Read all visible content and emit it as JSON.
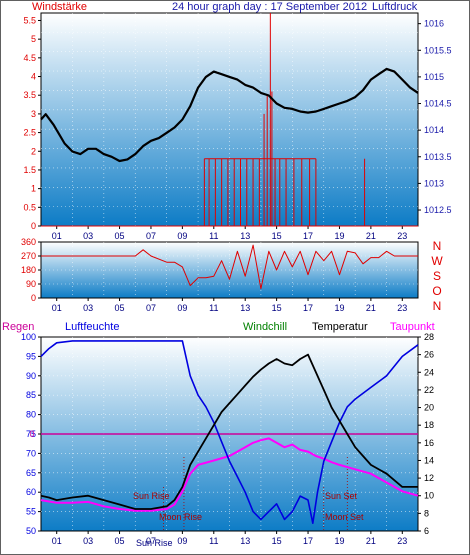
{
  "header": {
    "title": "24 hour graph day : 17 September 2012",
    "left_label": "Windstärke",
    "right_label": "Luftdruck"
  },
  "middle": {
    "compass_labels": [
      "N",
      "W",
      "S",
      "O",
      "N"
    ]
  },
  "bottom": {
    "labels": {
      "regen": "Regen",
      "luftfeuchte": "Luftfeuchte",
      "windchill": "Windchill",
      "temperatur": "Temperatur",
      "taupunkt": "Taupunkt"
    },
    "annotations": {
      "sun_rise": "Sun Rise",
      "moon_rise": "Moon Rise",
      "sun_set": "Sun Set",
      "moon_set": "Moon Set",
      "sun_rise_axis": "Sun Rise"
    }
  },
  "colors": {
    "border": "#606060",
    "bg_top": "#ffffff",
    "bg_bottom": "#0d7cc6",
    "wind": "#e00000",
    "pressure": "#000000",
    "humidity": "#0000e0",
    "temperature": "#000000",
    "dewpoint": "#ff00ff",
    "title": "#1a1aaa",
    "windchill": "#008000",
    "regen": "#cc0099"
  },
  "chart_data": [
    {
      "type": "line",
      "title": "24 hour graph day : 17 September 2012",
      "x_ticks": [
        "01",
        "03",
        "05",
        "07",
        "09",
        "11",
        "13",
        "15",
        "17",
        "19",
        "21",
        "23"
      ],
      "xlim": [
        0,
        24
      ],
      "y_left": {
        "label": "Windstärke",
        "ticks": [
          "0",
          "0.5",
          "1",
          "1.5",
          "2",
          "2.5",
          "3",
          "3.5",
          "4",
          "4.5",
          "5",
          "5.5"
        ],
        "lim": [
          0,
          5.7
        ]
      },
      "y_right": {
        "label": "Luftdruck",
        "ticks": [
          "1012.5",
          "1013",
          "1013.5",
          "1014",
          "1014.5",
          "1015",
          "1015.5",
          "1016"
        ],
        "lim": [
          1012.2,
          1016.2
        ]
      },
      "series": [
        {
          "name": "Luftdruck",
          "axis": "right",
          "x": [
            0,
            0.3,
            0.8,
            1.5,
            2,
            2.5,
            3,
            3.5,
            4,
            4.5,
            5,
            5.5,
            6,
            6.5,
            7,
            7.5,
            8,
            8.5,
            9,
            9.5,
            10,
            10.5,
            11,
            11.5,
            12,
            12.5,
            13,
            13.5,
            14,
            14.5,
            15,
            15.5,
            16,
            16.5,
            17,
            17.5,
            18,
            18.5,
            19,
            19.5,
            20,
            20.5,
            21,
            21.5,
            22,
            22.5,
            23,
            23.5,
            24
          ],
          "y": [
            1014.2,
            1014.3,
            1014.1,
            1013.75,
            1013.6,
            1013.55,
            1013.65,
            1013.65,
            1013.55,
            1013.5,
            1013.42,
            1013.45,
            1013.55,
            1013.7,
            1013.8,
            1013.85,
            1013.95,
            1014.05,
            1014.2,
            1014.45,
            1014.8,
            1015.0,
            1015.1,
            1015.05,
            1015.0,
            1014.95,
            1014.85,
            1014.8,
            1014.7,
            1014.65,
            1014.5,
            1014.42,
            1014.4,
            1014.35,
            1014.33,
            1014.35,
            1014.4,
            1014.45,
            1014.5,
            1014.55,
            1014.62,
            1014.75,
            1014.95,
            1015.05,
            1015.15,
            1015.1,
            1014.95,
            1014.8,
            1014.7
          ]
        },
        {
          "name": "Windstärke",
          "axis": "left",
          "x": [
            10.4,
            10.7,
            11.1,
            11.5,
            11.9,
            12.3,
            12.7,
            13.1,
            13.5,
            13.9,
            14.2,
            14.4,
            14.6,
            14.7,
            14.9,
            15.2,
            15.6,
            16.1,
            16.6,
            17.1,
            17.5,
            20.6
          ],
          "y": [
            1.8,
            1.8,
            1.8,
            1.8,
            1.8,
            1.8,
            1.8,
            1.8,
            1.8,
            1.8,
            3.0,
            3.5,
            5.7,
            3.6,
            1.8,
            1.8,
            1.8,
            1.8,
            1.8,
            1.8,
            1.8,
            1.8
          ]
        }
      ]
    },
    {
      "type": "line",
      "y_ticks": [
        "0",
        "90",
        "180",
        "270",
        "360"
      ],
      "ylim": [
        0,
        360
      ],
      "series": [
        {
          "name": "Windrichtung",
          "x": [
            0,
            0.5,
            1,
            2,
            3,
            4,
            5,
            6,
            6.5,
            7,
            8,
            8.5,
            9,
            9.5,
            10,
            10.5,
            11,
            11.5,
            12,
            12.5,
            13,
            13.5,
            14,
            14.5,
            15,
            15.5,
            16,
            16.5,
            17,
            17.5,
            18,
            18.5,
            19,
            19.5,
            20,
            20.5,
            21,
            21.5,
            22,
            22.5,
            23,
            23.5,
            24
          ],
          "y": [
            270,
            270,
            270,
            270,
            270,
            270,
            270,
            270,
            310,
            270,
            230,
            230,
            200,
            80,
            130,
            130,
            140,
            240,
            120,
            300,
            140,
            340,
            60,
            300,
            180,
            300,
            200,
            300,
            150,
            300,
            240,
            300,
            150,
            300,
            290,
            220,
            260,
            260,
            300,
            270,
            270,
            270,
            270
          ]
        }
      ]
    },
    {
      "type": "line",
      "y_left": {
        "label": "Luftfeuchte",
        "ticks": [
          "50",
          "55",
          "60",
          "65",
          "70",
          "75",
          "80",
          "85",
          "90",
          "95",
          "100"
        ],
        "lim": [
          50,
          100
        ]
      },
      "y_right": {
        "label": "Temperatur",
        "ticks": [
          "6",
          "8",
          "10",
          "12",
          "14",
          "16",
          "18",
          "20",
          "22",
          "24",
          "26",
          "28"
        ],
        "lim": [
          6,
          28
        ]
      },
      "regen_value": "0",
      "series": [
        {
          "name": "Luftfeuchte",
          "axis": "left",
          "x": [
            0,
            0.5,
            1,
            2,
            3,
            5,
            7,
            8,
            9,
            9.5,
            10,
            10.5,
            11,
            11.5,
            12,
            12.5,
            13,
            13.5,
            14,
            14.5,
            15,
            15.5,
            16,
            16.5,
            17,
            17.3,
            17.6,
            18,
            18.5,
            19,
            19.5,
            20,
            21,
            22,
            23,
            24
          ],
          "y": [
            95,
            97,
            98.5,
            99,
            99,
            99,
            99,
            99,
            99,
            90,
            85,
            82,
            78,
            73,
            68,
            64,
            60,
            55,
            53,
            55,
            57,
            53,
            55,
            59,
            58,
            52,
            60,
            68,
            73,
            78,
            82,
            84,
            87,
            90,
            95,
            98
          ]
        },
        {
          "name": "Temperatur",
          "axis": "right",
          "x": [
            0,
            0.5,
            1,
            2,
            3,
            4,
            5,
            6,
            7,
            8,
            8.5,
            9,
            9.5,
            10,
            10.5,
            11,
            11.5,
            12,
            12.5,
            13,
            13.5,
            14,
            14.5,
            15,
            15.5,
            16,
            16.5,
            17,
            17.5,
            18,
            18.5,
            19,
            19.5,
            20,
            20.5,
            21,
            22,
            23,
            24
          ],
          "y": [
            10,
            9.8,
            9.5,
            9.8,
            10,
            9.5,
            9,
            8.5,
            8.5,
            8.8,
            9.5,
            11,
            13.5,
            15,
            16.5,
            18,
            19.5,
            20.5,
            21.5,
            22.5,
            23.5,
            24.3,
            25,
            25.5,
            25,
            24.8,
            25.5,
            26,
            24,
            22,
            20,
            18.5,
            17,
            15.5,
            14.5,
            13.5,
            12.5,
            11,
            11
          ]
        },
        {
          "name": "Taupunkt",
          "axis": "right",
          "x": [
            0,
            1,
            2,
            3,
            4,
            5,
            6,
            7,
            8,
            8.5,
            9,
            9.5,
            10,
            11,
            12,
            12.5,
            13,
            13.5,
            14,
            14.5,
            15,
            15.5,
            16,
            16.5,
            17,
            17.5,
            18,
            18.5,
            19,
            20,
            21,
            22,
            23,
            24
          ],
          "y": [
            9.5,
            9.2,
            9.2,
            9.3,
            8.8,
            8.5,
            8.3,
            8.3,
            8.5,
            9,
            10.5,
            12.5,
            13.5,
            14,
            14.5,
            15,
            15.5,
            16,
            16.3,
            16.5,
            16,
            15.5,
            15.8,
            15.2,
            15,
            14.5,
            14.2,
            13.8,
            13.5,
            13,
            12.5,
            11.5,
            10.5,
            10
          ]
        }
      ]
    }
  ]
}
